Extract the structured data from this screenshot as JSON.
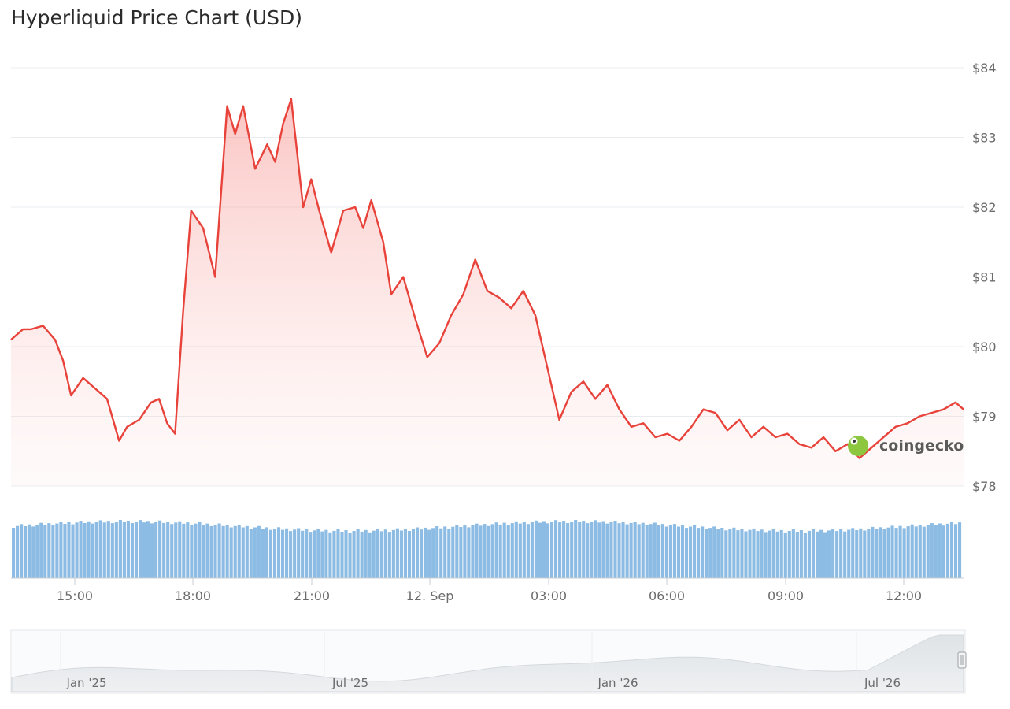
{
  "title": "Hyperliquid Price Chart (USD)",
  "watermark": "coingecko",
  "colors": {
    "line": "#e8433b",
    "volume": "#8cbbe3",
    "navigator": "#e6e9ec"
  },
  "chart_data": {
    "type": "line",
    "title": "Hyperliquid Price Chart (USD)",
    "ylim": [
      78,
      84
    ],
    "y_ticks": [
      "$84",
      "$83",
      "$82",
      "$81",
      "$80",
      "$79",
      "$78"
    ],
    "x_ticks": [
      "15:00",
      "18:00",
      "21:00",
      "12. Sep",
      "03:00",
      "06:00",
      "09:00",
      "12:00"
    ],
    "grid": true,
    "series": [
      {
        "x": [
          13.5,
          13.8,
          14.0,
          14.3,
          14.6,
          14.8,
          15.0,
          15.3,
          15.6,
          15.9,
          16.2,
          16.4,
          16.7,
          17.0,
          17.2,
          17.4,
          17.6,
          17.8,
          18.0,
          18.3,
          18.6,
          18.9,
          19.1,
          19.3,
          19.6,
          19.9,
          20.1,
          20.3,
          20.5,
          20.8,
          21.0,
          21.2,
          21.5,
          21.8,
          22.1,
          22.3,
          22.5,
          22.8,
          23.0,
          23.3,
          23.6,
          23.9,
          24.2,
          24.5,
          24.8,
          25.1,
          25.4,
          25.7,
          26.0,
          26.3,
          26.6,
          26.9,
          27.2,
          27.5,
          27.8,
          28.1,
          28.4,
          28.7,
          29.0,
          29.3,
          29.6,
          29.9,
          30.2,
          30.5,
          30.8,
          31.1,
          31.4,
          31.7,
          32.0,
          32.3,
          32.6,
          32.9,
          33.2,
          33.5,
          33.8,
          34.1,
          34.4,
          34.7,
          35.0,
          35.3,
          35.6,
          35.9,
          36.2,
          36.5,
          36.8,
          37.1,
          37.3
        ],
        "values": [
          80.1,
          80.25,
          80.25,
          80.3,
          80.1,
          79.8,
          79.3,
          79.55,
          79.4,
          79.25,
          78.65,
          78.85,
          78.95,
          79.2,
          79.25,
          78.9,
          78.75,
          80.5,
          81.95,
          81.7,
          81.0,
          83.45,
          83.05,
          83.45,
          82.55,
          82.9,
          82.65,
          83.2,
          83.55,
          82.0,
          82.4,
          81.95,
          81.35,
          81.95,
          82.0,
          81.7,
          82.1,
          81.5,
          80.75,
          81.0,
          80.4,
          79.85,
          80.05,
          80.45,
          80.75,
          81.25,
          80.8,
          80.7,
          80.55,
          80.8,
          80.45,
          79.7,
          78.95,
          79.35,
          79.5,
          79.25,
          79.45,
          79.1,
          78.85,
          78.9,
          78.7,
          78.75,
          78.65,
          78.85,
          79.1,
          79.05,
          78.8,
          78.95,
          78.7,
          78.85,
          78.7,
          78.75,
          78.6,
          78.55,
          78.7,
          78.5,
          78.6,
          78.4,
          78.55,
          78.7,
          78.85,
          78.9,
          79.0,
          79.05,
          79.1,
          79.2,
          79.1
        ]
      }
    ],
    "navigator": {
      "x_ticks": [
        "Jan '25",
        "Jul '25",
        "Jan '26",
        "Jul '26"
      ]
    }
  }
}
